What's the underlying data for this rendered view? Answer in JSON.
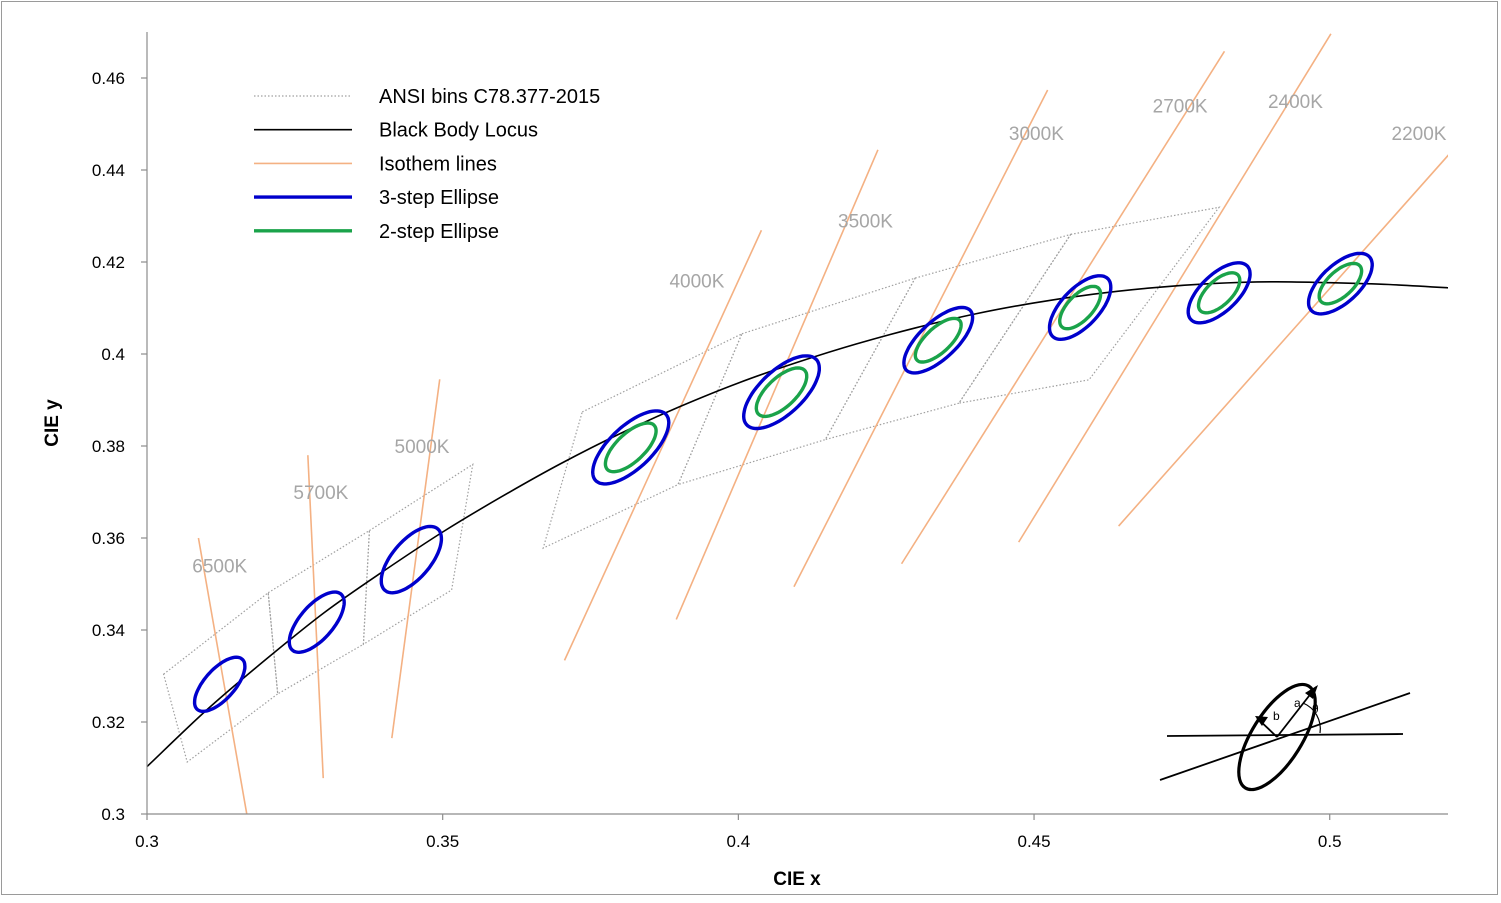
{
  "chart_data": {
    "type": "line",
    "title": "",
    "xlabel": "CIE x",
    "ylabel": "CIE y",
    "xlim": [
      0.3,
      0.52
    ],
    "ylim": [
      0.3,
      0.47
    ],
    "x_ticks": [
      "0.3",
      "0.35",
      "0.4",
      "0.45",
      "0.5"
    ],
    "y_ticks": [
      "0.3",
      "0.32",
      "0.34",
      "0.36",
      "0.38",
      "0.4",
      "0.42",
      "0.44",
      "0.46"
    ],
    "grid": false,
    "legend_position": "top-left",
    "legend": [
      {
        "label": "ANSI bins C78.377-2015",
        "style": "dotted",
        "color": "#a0a0a0"
      },
      {
        "label": "Black Body Locus",
        "style": "solid",
        "color": "#000000"
      },
      {
        "label": "Isothem lines",
        "style": "solid",
        "color": "#f4b183"
      },
      {
        "label": "3-step Ellipse",
        "style": "solid",
        "color": "#0000cc"
      },
      {
        "label": "2-step Ellipse",
        "style": "solid",
        "color": "#1aa34a"
      }
    ],
    "series": [
      {
        "name": "Black Body Locus",
        "x": [
          0.3,
          0.31,
          0.32,
          0.33,
          0.34,
          0.35,
          0.36,
          0.37,
          0.38,
          0.39,
          0.4,
          0.41,
          0.42,
          0.43,
          0.44,
          0.45,
          0.46,
          0.47,
          0.48,
          0.49,
          0.5,
          0.51,
          0.52
        ],
        "y": [
          0.3103,
          0.3225,
          0.3335,
          0.3438,
          0.3528,
          0.3613,
          0.369,
          0.3762,
          0.3827,
          0.3885,
          0.3937,
          0.3982,
          0.4022,
          0.4057,
          0.4087,
          0.4111,
          0.413,
          0.4144,
          0.4153,
          0.4157,
          0.4155,
          0.4151,
          0.4144
        ]
      }
    ],
    "isotherms": [
      {
        "label": "6500K",
        "x": [
          0.3087,
          0.3169
        ],
        "y": [
          0.36,
          0.2998
        ]
      },
      {
        "label": "5700K",
        "x": [
          0.3272,
          0.3298
        ],
        "y": [
          0.378,
          0.3078
        ]
      },
      {
        "label": "5000K",
        "x": [
          0.3414,
          0.3495
        ],
        "y": [
          0.3165,
          0.3945
        ]
      },
      {
        "label": "4000K",
        "x": [
          0.3706,
          0.4039
        ],
        "y": [
          0.3334,
          0.4269
        ]
      },
      {
        "label": "3500K",
        "x": [
          0.3895,
          0.4236
        ],
        "y": [
          0.3423,
          0.4444
        ]
      },
      {
        "label": "3000K",
        "x": [
          0.4094,
          0.4523
        ],
        "y": [
          0.3494,
          0.4574
        ]
      },
      {
        "label": "2700K",
        "x": [
          0.4276,
          0.4822
        ],
        "y": [
          0.3544,
          0.4658
        ]
      },
      {
        "label": "2400K",
        "x": [
          0.4474,
          0.5002
        ],
        "y": [
          0.3591,
          0.4696
        ]
      },
      {
        "label": "2200K",
        "x": [
          0.4643,
          0.5201
        ],
        "y": [
          0.3626,
          0.4433
        ]
      }
    ],
    "ansi_bins": [
      [
        [
          0.3028,
          0.3304
        ],
        [
          0.3205,
          0.3481
        ],
        [
          0.3221,
          0.3261
        ],
        [
          0.3068,
          0.3113
        ]
      ],
      [
        [
          0.3205,
          0.3481
        ],
        [
          0.3376,
          0.3616
        ],
        [
          0.3366,
          0.3369
        ],
        [
          0.3221,
          0.3261
        ]
      ],
      [
        [
          0.3376,
          0.3616
        ],
        [
          0.3551,
          0.376
        ],
        [
          0.3515,
          0.3487
        ],
        [
          0.3366,
          0.3369
        ]
      ],
      [
        [
          0.3736,
          0.3874
        ],
        [
          0.4006,
          0.4044
        ],
        [
          0.3898,
          0.3716
        ],
        [
          0.367,
          0.3578
        ]
      ],
      [
        [
          0.4006,
          0.4044
        ],
        [
          0.4299,
          0.4165
        ],
        [
          0.4147,
          0.3814
        ],
        [
          0.3898,
          0.3716
        ]
      ],
      [
        [
          0.4299,
          0.4165
        ],
        [
          0.4562,
          0.426
        ],
        [
          0.4373,
          0.3893
        ],
        [
          0.4147,
          0.3814
        ]
      ],
      [
        [
          0.4562,
          0.426
        ],
        [
          0.4813,
          0.4319
        ],
        [
          0.4593,
          0.3944
        ],
        [
          0.4373,
          0.3893
        ]
      ]
    ],
    "ellipses": [
      {
        "cct": "6500K",
        "center": [
          0.3123,
          0.3282
        ],
        "a3": 0.0067,
        "b3": 0.0028,
        "theta_deg": 58.23
      },
      {
        "cct": "5700K",
        "center": [
          0.3287,
          0.3417
        ],
        "a3": 0.0074,
        "b3": 0.0031,
        "theta_deg": 59.09
      },
      {
        "cct": "5000K",
        "center": [
          0.3447,
          0.3553
        ],
        "a3": 0.0081,
        "b3": 0.0035,
        "theta_deg": 59.62
      },
      {
        "cct": "4000K",
        "center": [
          0.3818,
          0.3797
        ],
        "a3": 0.0094,
        "b3": 0.004,
        "theta_deg": 53.72
      },
      {
        "cct": "3500K",
        "center": [
          0.4073,
          0.3917
        ],
        "a3": 0.0093,
        "b3": 0.0041,
        "theta_deg": 54.0
      },
      {
        "cct": "3000K",
        "center": [
          0.4338,
          0.403
        ],
        "a3": 0.0085,
        "b3": 0.0035,
        "theta_deg": 53.22
      },
      {
        "cct": "2700K",
        "center": [
          0.4578,
          0.4101
        ],
        "a3": 0.0079,
        "b3": 0.0035,
        "theta_deg": 57.28
      },
      {
        "cct": "2400K",
        "center": [
          0.4813,
          0.4133
        ],
        "a3": 0.0076,
        "b3": 0.0035,
        "theta_deg": 54.8
      },
      {
        "cct": "2200K",
        "center": [
          0.5018,
          0.4153
        ],
        "a3": 0.0077,
        "b3": 0.0036,
        "theta_deg": 54.0
      }
    ],
    "two_step_ellipse_ccts": [
      "4000K",
      "3500K",
      "3000K",
      "2700K",
      "2400K",
      "2200K"
    ],
    "cct_labels": [
      {
        "text": "6500K",
        "x": 0.3123,
        "y": 0.3525
      },
      {
        "text": "5700K",
        "x": 0.3294,
        "y": 0.3685
      },
      {
        "text": "5000K",
        "x": 0.3465,
        "y": 0.3785
      },
      {
        "text": "4000K",
        "x": 0.393,
        "y": 0.4145
      },
      {
        "text": "3500K",
        "x": 0.4215,
        "y": 0.4275
      },
      {
        "text": "3000K",
        "x": 0.4504,
        "y": 0.4465
      },
      {
        "text": "2700K",
        "x": 0.4747,
        "y": 0.4525
      },
      {
        "text": "2400K",
        "x": 0.4942,
        "y": 0.4535
      },
      {
        "text": "2200K",
        "x": 0.5151,
        "y": 0.4465
      }
    ],
    "inset_labels": {
      "a": "a",
      "b": "b",
      "theta": "θ"
    }
  }
}
